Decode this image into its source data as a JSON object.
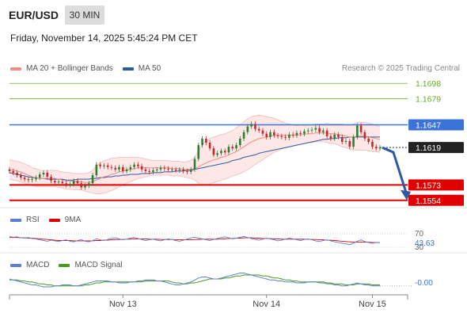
{
  "header": {
    "symbol": "EUR/USD",
    "timeframe": "30 MIN",
    "datetime": "Friday, November 14, 2025 5:45:24 PM CET",
    "credit": "Research © 2025 Trading Central"
  },
  "legends": {
    "price": [
      {
        "label": "MA 20 + Bollinger Bands",
        "color": "#f28b82"
      },
      {
        "label": "MA 50",
        "color": "#2c5aa0"
      }
    ],
    "rsi": [
      {
        "label": "RSI",
        "color": "#5b7fd6"
      },
      {
        "label": "9MA",
        "color": "#e00000"
      }
    ],
    "macd": [
      {
        "label": "MACD",
        "color": "#5b7fd6"
      },
      {
        "label": "MACD Signal",
        "color": "#4a9a1e"
      }
    ]
  },
  "colors": {
    "up_candle": "#2e7d32",
    "down_candle": "#c62828",
    "resistance": "#6aaa2e",
    "pivot": "#3b73d9",
    "support": "#e00000",
    "arrow": "#2c5aa0",
    "band_fill": "#fde4e4"
  },
  "chart_data": [
    {
      "type": "candlestick",
      "ylim": [
        1.1545,
        1.1708
      ],
      "x_ticks": [
        "Nov 13",
        "Nov 14",
        "Nov 15"
      ],
      "levels": [
        {
          "value": 1.1698,
          "label": "1.1698",
          "kind": "resistance"
        },
        {
          "value": 1.1679,
          "label": "1.1679",
          "kind": "resistance"
        },
        {
          "value": 1.1647,
          "label": "1.1647",
          "kind": "pivot"
        },
        {
          "value": 1.1619,
          "label": "1.1619",
          "kind": "last"
        },
        {
          "value": 1.1573,
          "label": "1.1573",
          "kind": "support"
        },
        {
          "value": 1.1554,
          "label": "1.1554",
          "kind": "support"
        }
      ],
      "close_series": [
        1.159,
        1.1588,
        1.1585,
        1.1582,
        1.158,
        1.1579,
        1.158,
        1.1582,
        1.1586,
        1.1588,
        1.1583,
        1.1578,
        1.1576,
        1.1577,
        1.1575,
        1.1573,
        1.1574,
        1.1578,
        1.1575,
        1.157,
        1.1572,
        1.1575,
        1.1585,
        1.1598,
        1.1596,
        1.1597,
        1.1595,
        1.1594,
        1.1592,
        1.1595,
        1.159,
        1.1592,
        1.1595,
        1.1598,
        1.1596,
        1.1592,
        1.159,
        1.1589,
        1.1591,
        1.1592,
        1.1594,
        1.1593,
        1.1592,
        1.1592,
        1.1591,
        1.1592,
        1.159,
        1.1589,
        1.1592,
        1.1605,
        1.1622,
        1.163,
        1.1625,
        1.1618,
        1.161,
        1.1612,
        1.1615,
        1.1613,
        1.162,
        1.1618,
        1.1622,
        1.163,
        1.1638,
        1.1645,
        1.1648,
        1.1642,
        1.164,
        1.1636,
        1.1632,
        1.1638,
        1.1634,
        1.1633,
        1.1632,
        1.1631,
        1.1635,
        1.1634,
        1.1637,
        1.1636,
        1.1639,
        1.164,
        1.1641,
        1.1643,
        1.1638,
        1.164,
        1.1633,
        1.163,
        1.1635,
        1.1632,
        1.1626,
        1.1627,
        1.162,
        1.1632,
        1.1646,
        1.1638,
        1.163,
        1.1626,
        1.162,
        1.1618,
        1.1619
      ],
      "ma20_series": [
        1.1592,
        1.1591,
        1.159,
        1.1589,
        1.1587,
        1.1585,
        1.1583,
        1.1582,
        1.1581,
        1.1581,
        1.1581,
        1.1581,
        1.1581,
        1.158,
        1.1579,
        1.1578,
        1.1578,
        1.1577,
        1.1577,
        1.1577,
        1.1576,
        1.1576,
        1.1577,
        1.1579,
        1.1581,
        1.1583,
        1.1584,
        1.1586,
        1.1587,
        1.1589,
        1.159,
        1.1591,
        1.1592,
        1.1593,
        1.1594,
        1.1594,
        1.1594,
        1.1594,
        1.1594,
        1.1594,
        1.1594,
        1.1594,
        1.1594,
        1.1593,
        1.1593,
        1.1593,
        1.1592,
        1.1592,
        1.1592,
        1.1593,
        1.1595,
        1.1598,
        1.16,
        1.1602,
        1.1604,
        1.1605,
        1.1607,
        1.1608,
        1.161,
        1.1612,
        1.1614,
        1.1617,
        1.162,
        1.1623,
        1.1626,
        1.1628,
        1.163,
        1.1631,
        1.1632,
        1.1633,
        1.1634,
        1.1634,
        1.1634,
        1.1634,
        1.1634,
        1.1634,
        1.1634,
        1.1635,
        1.1635,
        1.1636,
        1.1636,
        1.1637,
        1.1637,
        1.1637,
        1.1637,
        1.1636,
        1.1636,
        1.1635,
        1.1634,
        1.1633,
        1.1632,
        1.1632,
        1.1633,
        1.1633,
        1.1633,
        1.1632,
        1.1631,
        1.163,
        1.1629
      ],
      "bb_width_series": [
        0.0012,
        0.0012,
        0.0012,
        0.0012,
        0.0012,
        0.0012,
        0.0011,
        0.0011,
        0.001,
        0.001,
        0.001,
        0.001,
        0.001,
        0.001,
        0.001,
        0.001,
        0.001,
        0.001,
        0.001,
        0.001,
        0.0011,
        0.0012,
        0.0014,
        0.0017,
        0.0019,
        0.002,
        0.002,
        0.002,
        0.0019,
        0.0018,
        0.0017,
        0.0016,
        0.0015,
        0.0014,
        0.0013,
        0.0012,
        0.0011,
        0.001,
        0.0009,
        0.0009,
        0.0009,
        0.0009,
        0.0009,
        0.0009,
        0.0009,
        0.0009,
        0.0009,
        0.001,
        0.0011,
        0.0014,
        0.002,
        0.0025,
        0.0027,
        0.0028,
        0.0028,
        0.0028,
        0.0028,
        0.0028,
        0.0028,
        0.0028,
        0.0029,
        0.003,
        0.0031,
        0.0031,
        0.0031,
        0.003,
        0.0029,
        0.0027,
        0.0025,
        0.0023,
        0.0021,
        0.0019,
        0.0017,
        0.0015,
        0.0014,
        0.0013,
        0.0012,
        0.0012,
        0.0011,
        0.0011,
        0.0011,
        0.0011,
        0.0011,
        0.0011,
        0.0012,
        0.0012,
        0.0012,
        0.0013,
        0.0014,
        0.0014,
        0.0015,
        0.0016,
        0.0017,
        0.0017,
        0.0017,
        0.0017,
        0.0017,
        0.0016,
        0.0016
      ],
      "ma50_series": [
        1.1588,
        1.1587,
        1.1586,
        1.1585,
        1.1584,
        1.1583,
        1.1582,
        1.1582,
        1.1581,
        1.1581,
        1.158,
        1.158,
        1.158,
        1.158,
        1.158,
        1.1579,
        1.1579,
        1.1579,
        1.158,
        1.158,
        1.158,
        1.158,
        1.1581,
        1.1581,
        1.1582,
        1.1582,
        1.1583,
        1.1583,
        1.1584,
        1.1584,
        1.1585,
        1.1585,
        1.1586,
        1.1586,
        1.1586,
        1.1587,
        1.1587,
        1.1587,
        1.1588,
        1.1588,
        1.1588,
        1.1589,
        1.1589,
        1.1589,
        1.159,
        1.159,
        1.159,
        1.1591,
        1.1591,
        1.1592,
        1.1593,
        1.1594,
        1.1595,
        1.1596,
        1.1597,
        1.1598,
        1.1599,
        1.16,
        1.1601,
        1.1603,
        1.1604,
        1.1605,
        1.1607,
        1.1608,
        1.1609,
        1.161,
        1.1612,
        1.1613,
        1.1614,
        1.1615,
        1.1616,
        1.1617,
        1.1618,
        1.1619,
        1.162,
        1.1621,
        1.1622,
        1.1623,
        1.1624,
        1.1625,
        1.1626,
        1.1627,
        1.1628,
        1.1629,
        1.1629,
        1.163,
        1.163,
        1.1631,
        1.1631,
        1.1631,
        1.1632,
        1.1632,
        1.1632,
        1.1632,
        1.1632,
        1.1632,
        1.1632,
        1.1632,
        1.1632
      ],
      "forecast": {
        "from": 1.1619,
        "to": 1.1554
      }
    },
    {
      "type": "line",
      "name": "RSI",
      "ylim": [
        30,
        70
      ],
      "levels": [
        {
          "value": 70,
          "label": "70"
        },
        {
          "value": 30,
          "label": "30"
        }
      ],
      "last_label": "43.63",
      "rsi_series": [
        62,
        60,
        61,
        58,
        57,
        59,
        56,
        55,
        52,
        50,
        48,
        51,
        49,
        47,
        50,
        52,
        48,
        46,
        50,
        53,
        48,
        46,
        50,
        55,
        52,
        50,
        53,
        56,
        58,
        55,
        52,
        54,
        57,
        59,
        56,
        53,
        50,
        52,
        54,
        51,
        49,
        52,
        55,
        53,
        50,
        48,
        51,
        54,
        58,
        60,
        57,
        55,
        52,
        50,
        53,
        56,
        59,
        61,
        58,
        55,
        57,
        60,
        62,
        59,
        56,
        53,
        51,
        54,
        57,
        55,
        52,
        49,
        51,
        54,
        57,
        55,
        52,
        50,
        53,
        55,
        52,
        49,
        47,
        50,
        52,
        49,
        46,
        44,
        42,
        40,
        38,
        42,
        48,
        52,
        47,
        44,
        42,
        44,
        43.63
      ],
      "ma9_series": [
        59,
        59,
        59,
        58,
        58,
        57,
        57,
        56,
        55,
        54,
        53,
        52,
        51,
        50,
        50,
        50,
        50,
        49,
        49,
        49,
        49,
        49,
        49,
        50,
        50,
        51,
        51,
        52,
        53,
        53,
        53,
        54,
        54,
        55,
        55,
        55,
        55,
        54,
        54,
        54,
        53,
        53,
        53,
        53,
        52,
        52,
        52,
        52,
        52,
        53,
        53,
        54,
        54,
        54,
        54,
        54,
        55,
        55,
        56,
        56,
        57,
        57,
        58,
        58,
        58,
        57,
        57,
        56,
        56,
        56,
        55,
        55,
        54,
        54,
        54,
        54,
        54,
        54,
        54,
        54,
        53,
        53,
        52,
        52,
        51,
        51,
        50,
        49,
        48,
        47,
        46,
        45,
        45,
        45,
        45,
        45,
        44,
        44,
        44
      ]
    },
    {
      "type": "line",
      "name": "MACD",
      "ylim": [
        -0.0012,
        0.0012
      ],
      "last_label": "-0.00",
      "macd_series": [
        0.0004,
        0.0003,
        0.0002,
        0.0001,
        0.0,
        -0.0001,
        -0.0002,
        -0.0002,
        -0.0003,
        -0.0004,
        -0.0004,
        -0.0004,
        -0.0003,
        -0.0003,
        -0.0002,
        -0.0002,
        -0.0002,
        -0.0003,
        -0.0003,
        -0.0002,
        -0.0001,
        0.0,
        0.0001,
        0.0002,
        0.0002,
        0.0002,
        0.0002,
        0.0001,
        0.0001,
        0.0,
        0.0,
        0.0,
        0.0001,
        0.0001,
        0.0002,
        0.0002,
        0.0003,
        0.0003,
        0.0003,
        0.0002,
        0.0002,
        0.0001,
        0.0,
        -0.0001,
        -0.0002,
        -0.0002,
        -0.0001,
        0.0,
        0.0001,
        0.0003,
        0.0005,
        0.0006,
        0.0006,
        0.0005,
        0.0004,
        0.0004,
        0.0005,
        0.0006,
        0.0007,
        0.0008,
        0.0009,
        0.001,
        0.001,
        0.0009,
        0.0008,
        0.0007,
        0.0006,
        0.0005,
        0.0004,
        0.0003,
        0.0003,
        0.0002,
        0.0002,
        0.0001,
        0.0001,
        0.0001,
        0.0,
        0.0,
        0.0,
        0.0001,
        0.0001,
        0.0001,
        0.0,
        0.0,
        -0.0001,
        -0.0001,
        -0.0002,
        -0.0002,
        -0.0003,
        -0.0003,
        -0.0002,
        -0.0001,
        0.0,
        -0.0001,
        -0.0002,
        -0.0002,
        -0.0003,
        -0.0003,
        -0.0003
      ],
      "signal_series": [
        0.0003,
        0.0003,
        0.0003,
        0.0002,
        0.0002,
        0.0001,
        0.0001,
        0.0,
        -0.0001,
        -0.0001,
        -0.0002,
        -0.0002,
        -0.0003,
        -0.0003,
        -0.0003,
        -0.0003,
        -0.0003,
        -0.0003,
        -0.0003,
        -0.0003,
        -0.0002,
        -0.0002,
        -0.0001,
        0.0,
        0.0,
        0.0001,
        0.0001,
        0.0001,
        0.0001,
        0.0001,
        0.0001,
        0.0001,
        0.0001,
        0.0001,
        0.0001,
        0.0001,
        0.0002,
        0.0002,
        0.0002,
        0.0002,
        0.0002,
        0.0002,
        0.0002,
        0.0001,
        0.0,
        0.0,
        -0.0001,
        -0.0001,
        0.0,
        0.0,
        0.0001,
        0.0002,
        0.0003,
        0.0004,
        0.0004,
        0.0004,
        0.0004,
        0.0005,
        0.0005,
        0.0006,
        0.0007,
        0.0007,
        0.0008,
        0.0008,
        0.0008,
        0.0008,
        0.0008,
        0.0007,
        0.0007,
        0.0006,
        0.0005,
        0.0005,
        0.0004,
        0.0003,
        0.0003,
        0.0002,
        0.0002,
        0.0001,
        0.0001,
        0.0001,
        0.0001,
        0.0001,
        0.0001,
        0.0001,
        0.0,
        0.0,
        -0.0001,
        -0.0001,
        -0.0001,
        -0.0002,
        -0.0002,
        -0.0002,
        -0.0001,
        -0.0001,
        -0.0001,
        -0.0001,
        -0.0002,
        -0.0002,
        -0.0002
      ]
    }
  ]
}
